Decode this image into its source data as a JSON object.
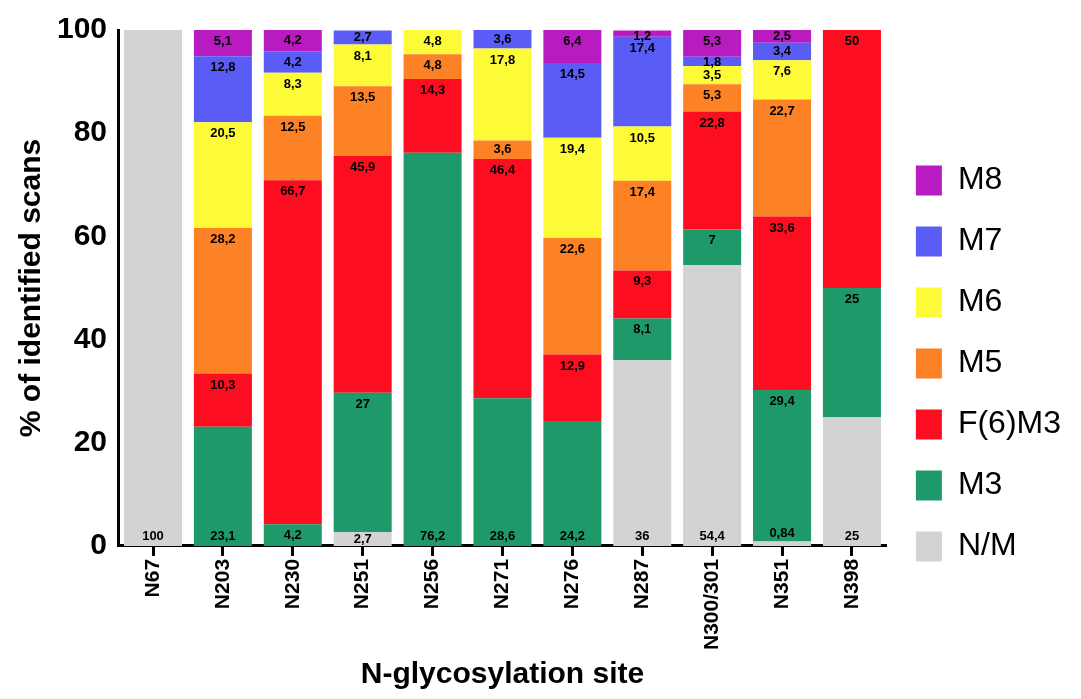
{
  "chart_data": {
    "type": "bar",
    "stacked": true,
    "xlabel": "N-glycosylation site",
    "ylabel": "% of identified scans",
    "categories": [
      "N67",
      "N203",
      "N230",
      "N251",
      "N256",
      "N271",
      "N276",
      "N287",
      "N300/301",
      "N351",
      "N398"
    ],
    "ylim": [
      0,
      100
    ],
    "yticks": [
      0,
      20,
      40,
      60,
      80,
      100
    ],
    "grid": false,
    "legend": "right",
    "series": [
      {
        "name": "N/M",
        "color": "#d3d3d3",
        "values": [
          100,
          null,
          null,
          2.7,
          null,
          null,
          null,
          36,
          54.4,
          0.84,
          25
        ],
        "value_labels": [
          "100",
          null,
          null,
          "2,7",
          null,
          null,
          null,
          "36",
          "54,4",
          "0,84",
          "25"
        ]
      },
      {
        "name": "M3",
        "color": "#1e9a6a",
        "values": [
          null,
          23.1,
          4.2,
          27,
          76.2,
          28.6,
          24.2,
          8.1,
          7,
          29.4,
          25
        ],
        "value_labels": [
          null,
          "23,1",
          "4,2",
          "27",
          "76,2",
          "28,6",
          "24,2",
          "8,1",
          "7",
          "29,4",
          "25"
        ]
      },
      {
        "name": "F(6)M3",
        "color": "#fc0d1f",
        "values": [
          null,
          10.3,
          66.7,
          45.9,
          14.3,
          46.4,
          12.9,
          9.3,
          22.8,
          33.6,
          50
        ],
        "value_labels": [
          null,
          "10,3",
          "66,7",
          "45,9",
          "14,3",
          "46,4",
          "12,9",
          "9,3",
          "22,8",
          "33,6",
          "50"
        ]
      },
      {
        "name": "M5",
        "color": "#fd8125",
        "values": [
          null,
          28.2,
          12.5,
          13.5,
          4.8,
          3.6,
          22.6,
          17.4,
          5.3,
          22.7,
          null
        ],
        "value_labels": [
          null,
          "28,2",
          "12,5",
          "13,5",
          "4,8",
          "3,6",
          "22,6",
          "17,4",
          "5,3",
          "22,7",
          null
        ]
      },
      {
        "name": "M6",
        "color": "#fdfb38",
        "values": [
          null,
          20.5,
          8.3,
          8.1,
          4.8,
          17.8,
          19.4,
          10.5,
          3.5,
          7.6,
          null
        ],
        "value_labels": [
          null,
          "20,5",
          "8,3",
          "8,1",
          "4,8",
          "17,8",
          "19,4",
          "10,5",
          "3,5",
          "7,6",
          null
        ]
      },
      {
        "name": "M7",
        "color": "#595cf5",
        "values": [
          null,
          12.8,
          4.2,
          2.7,
          null,
          3.6,
          14.5,
          17.4,
          1.8,
          3.4,
          null
        ],
        "value_labels": [
          null,
          "12,8",
          "4,2",
          "2,7",
          null,
          "3,6",
          "14,5",
          "17,4",
          "1,8",
          "3,4",
          null
        ]
      },
      {
        "name": "M8",
        "color": "#b81bbf",
        "values": [
          null,
          5.1,
          4.2,
          null,
          null,
          null,
          6.4,
          1.2,
          5.3,
          2.5,
          null
        ],
        "value_labels": [
          null,
          "5,1",
          "4,2",
          null,
          null,
          null,
          "6,4",
          "1,2",
          "5,3",
          "2,5",
          null
        ]
      }
    ]
  }
}
